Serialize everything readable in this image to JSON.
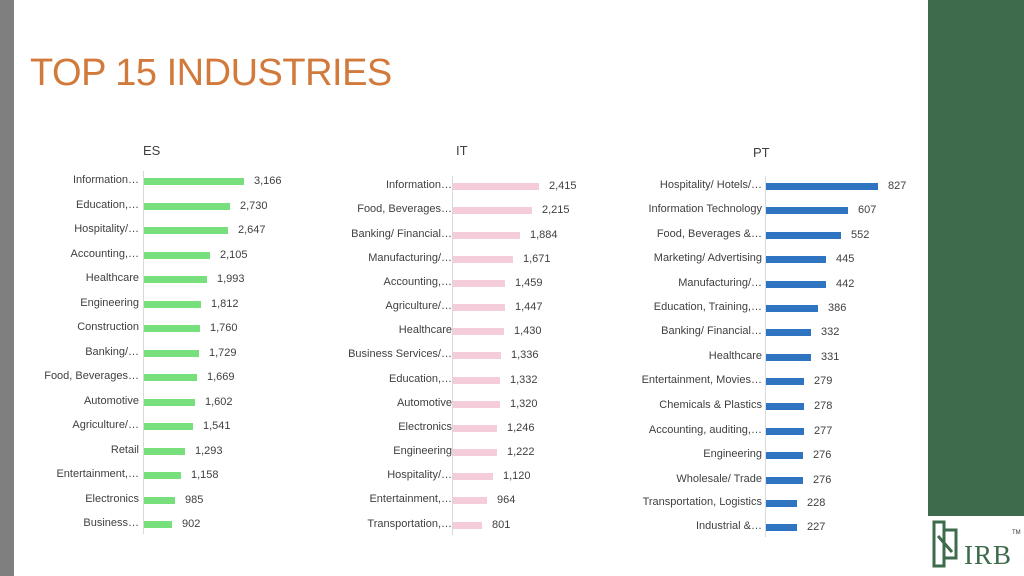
{
  "page": {
    "title": "TOP 15 INDUSTRIES",
    "logo_text": "IRB",
    "logo_tm": "TM"
  },
  "colors": {
    "title": "#d27a3c",
    "es": "#77e07d",
    "it": "#f5ccd9",
    "pt": "#2e74c0"
  },
  "chart_data": [
    {
      "type": "bar",
      "orientation": "horizontal",
      "title": "ES",
      "categories": [
        "Information…",
        "Education,…",
        "Hospitality/…",
        "Accounting,…",
        "Healthcare",
        "Engineering",
        "Construction",
        "Banking/…",
        "Food, Beverages…",
        "Automotive",
        "Agriculture/…",
        "Retail",
        "Entertainment,…",
        "Electronics",
        "Business…"
      ],
      "values": [
        3166,
        2730,
        2647,
        2105,
        1993,
        1812,
        1760,
        1729,
        1669,
        1602,
        1541,
        1293,
        1158,
        985,
        902
      ],
      "value_labels": [
        "3,166",
        "2,730",
        "2,647",
        "2,105",
        "1,993",
        "1,812",
        "1,760",
        "1,729",
        "1,669",
        "1,602",
        "1,541",
        "1,293",
        "1,158",
        "985",
        "902"
      ],
      "xlim": [
        0,
        3400
      ]
    },
    {
      "type": "bar",
      "orientation": "horizontal",
      "title": "IT",
      "categories": [
        "Information…",
        "Food, Beverages…",
        "Banking/ Financial…",
        "Manufacturing/…",
        "Accounting,…",
        "Agriculture/…",
        "Healthcare",
        "Business Services/…",
        "Education,…",
        "Automotive",
        "Electronics",
        "Engineering",
        "Hospitality/…",
        "Entertainment,…",
        "Transportation,…"
      ],
      "values": [
        2415,
        2215,
        1884,
        1671,
        1459,
        1447,
        1430,
        1336,
        1332,
        1320,
        1246,
        1222,
        1120,
        964,
        801
      ],
      "value_labels": [
        "2,415",
        "2,215",
        "1,884",
        "1,671",
        "1,459",
        "1,447",
        "1,430",
        "1,336",
        "1,332",
        "1,320",
        "1,246",
        "1,222",
        "1,120",
        "964",
        "801"
      ],
      "xlim": [
        0,
        2600
      ]
    },
    {
      "type": "bar",
      "orientation": "horizontal",
      "title": "PT",
      "categories": [
        "Hospitality/ Hotels/…",
        "Information Technology",
        "Food, Beverages &…",
        "Marketing/ Advertising",
        "Manufacturing/…",
        "Education, Training,…",
        "Banking/ Financial…",
        "Healthcare",
        "Entertainment, Movies…",
        "Chemicals & Plastics",
        "Accounting, auditing,…",
        "Engineering",
        "Wholesale/ Trade",
        "Transportation, Logistics",
        "Industrial &…"
      ],
      "values": [
        827,
        607,
        552,
        445,
        442,
        386,
        332,
        331,
        279,
        278,
        277,
        276,
        276,
        228,
        227
      ],
      "value_labels": [
        "827",
        "607",
        "552",
        "445",
        "442",
        "386",
        "332",
        "331",
        "279",
        "278",
        "277",
        "276",
        "276",
        "228",
        "227"
      ],
      "xlim": [
        0,
        870
      ]
    }
  ]
}
